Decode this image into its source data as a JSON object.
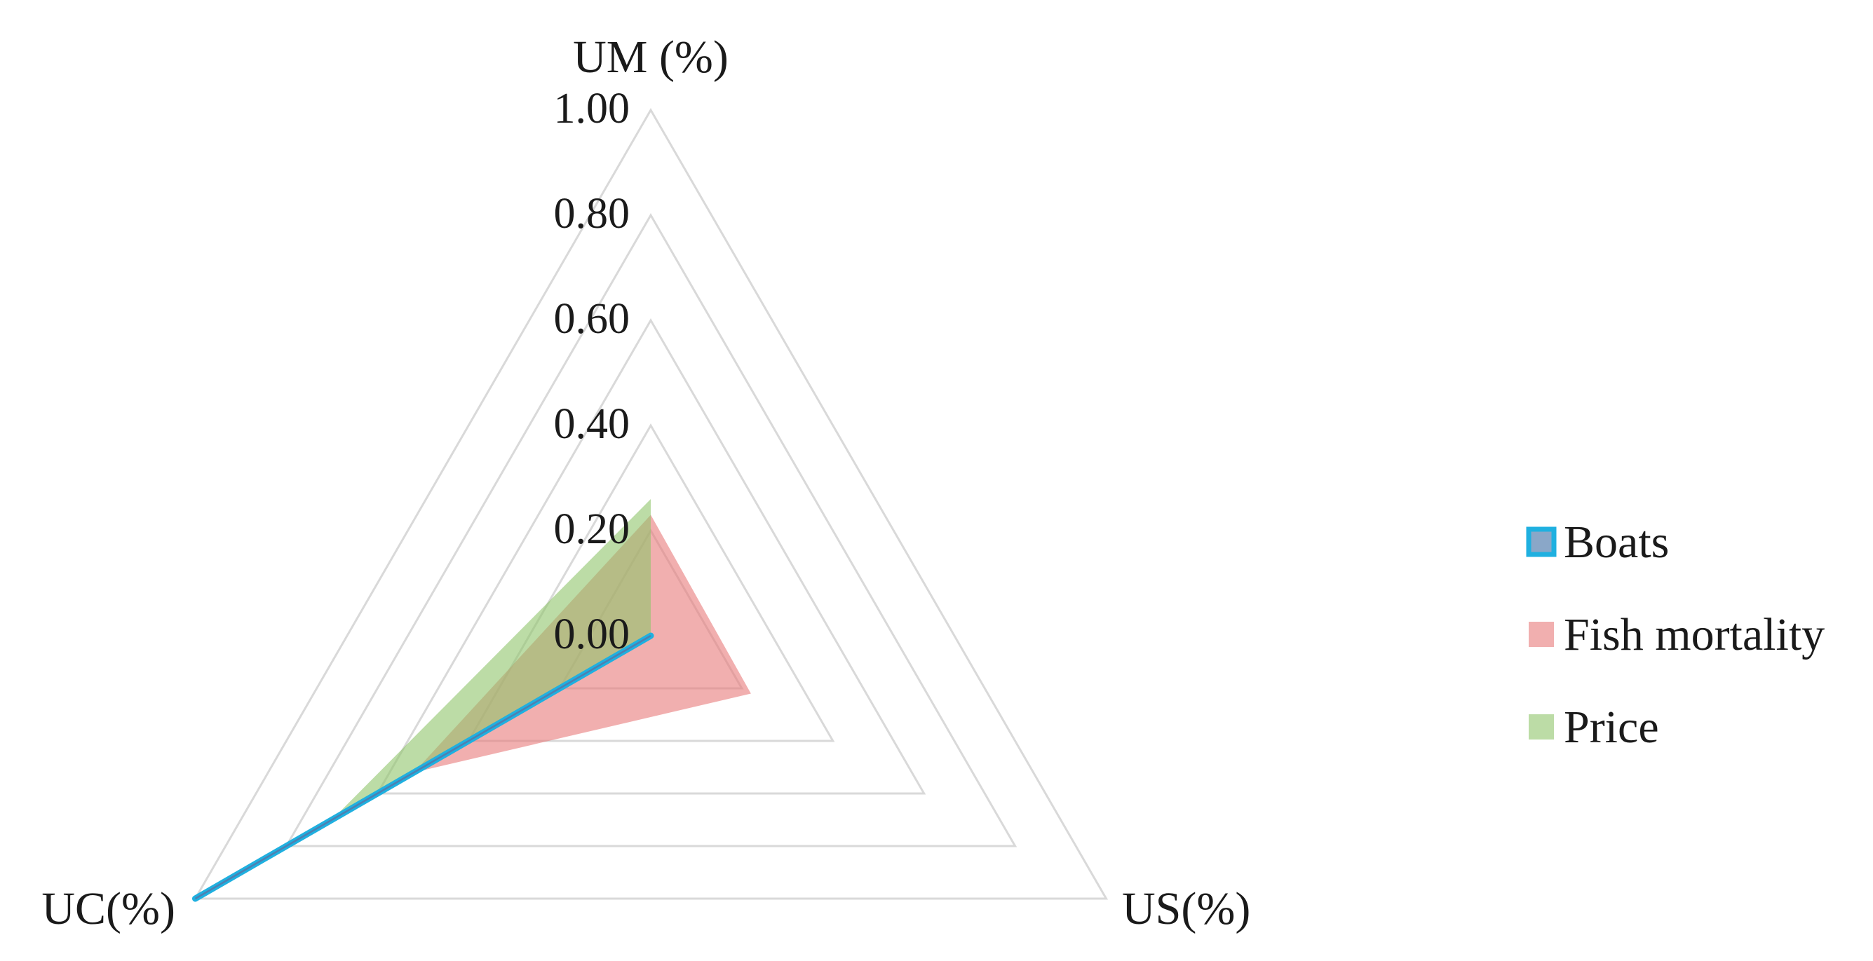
{
  "chart_data": {
    "type": "radar",
    "axes": [
      "UM (%)",
      "US(%)",
      "UC(%)"
    ],
    "ticks": [
      "0.00",
      "0.20",
      "0.40",
      "0.60",
      "0.80",
      "1.00"
    ],
    "range": [
      0,
      1
    ],
    "grid": true,
    "legend_position": "right",
    "series": [
      {
        "name": "Boats",
        "values": [
          0.0,
          0.0,
          1.0
        ],
        "color": "#1fb0e0",
        "style": "line"
      },
      {
        "name": "Fish mortality",
        "values": [
          0.23,
          0.22,
          0.52
        ],
        "color": "#e87a7a",
        "style": "area"
      },
      {
        "name": "Price",
        "values": [
          0.26,
          0.0,
          0.7
        ],
        "color": "#8fc46a",
        "style": "area"
      }
    ]
  }
}
